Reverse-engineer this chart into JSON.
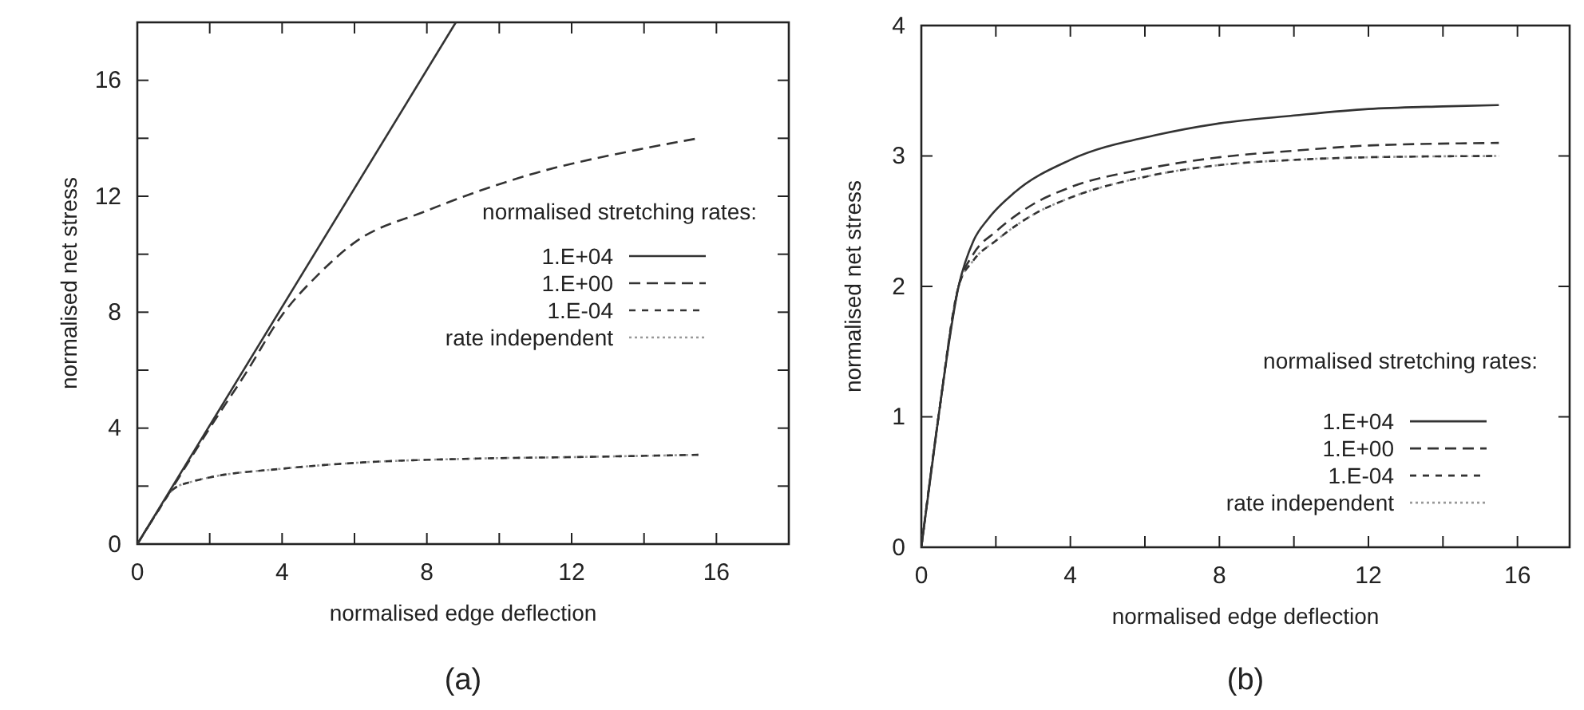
{
  "chart_data": [
    {
      "type": "line",
      "title": "(a)",
      "xlabel": "normalised edge deflection",
      "ylabel": "normalised net stress",
      "legend_title": "normalised stretching rates:",
      "legend": "right",
      "xlim": [
        0,
        18
      ],
      "ylim": [
        0,
        18
      ],
      "xticks": [
        0,
        {
          "value": 2,
          "label": null
        },
        4,
        {
          "value": 6,
          "label": null
        },
        8,
        {
          "value": 10,
          "label": null
        },
        12,
        {
          "value": 14,
          "label": null
        },
        16
      ],
      "yticks": [
        0,
        {
          "value": 2,
          "label": null
        },
        4,
        {
          "value": 6,
          "label": null
        },
        8,
        {
          "value": 10,
          "label": null
        },
        12,
        {
          "value": 14,
          "label": null
        },
        16
      ],
      "series": [
        {
          "name": "1.E+04",
          "color": "#333333",
          "line_style": "solid",
          "x": [
            0,
            8.8
          ],
          "values": [
            0,
            18
          ]
        },
        {
          "name": "1.E+00",
          "color": "#333333",
          "line_style": "dashed",
          "x": [
            0,
            1,
            2,
            3,
            4,
            5,
            6,
            8,
            11,
            13.8,
            15.5
          ],
          "values": [
            0,
            2,
            4,
            5.9,
            7.9,
            9.3,
            10.4,
            11.5,
            12.8,
            13.6,
            14
          ]
        },
        {
          "name": "1.E-04",
          "color": "#333333",
          "line_style": "dashed",
          "x": [
            0,
            0.5,
            1,
            1.5,
            2,
            4,
            6,
            9.4,
            12,
            15.5
          ],
          "values": [
            0,
            1,
            1.9,
            2.15,
            2.3,
            2.6,
            2.8,
            2.95,
            3.0,
            3.08
          ]
        },
        {
          "name": "rate independent",
          "color": "#999999",
          "line_style": "dotted",
          "x": [
            0,
            0.5,
            1,
            1.5,
            2,
            4,
            6,
            9.4,
            12,
            15.5
          ],
          "values": [
            0,
            1,
            1.9,
            2.15,
            2.3,
            2.6,
            2.8,
            2.95,
            3.0,
            3.08
          ]
        }
      ]
    },
    {
      "type": "line",
      "title": "(b)",
      "xlabel": "normalised edge deflection",
      "ylabel": "normalised net stress",
      "legend_title": "normalised stretching rates:",
      "legend": "bottom right",
      "xlim": [
        0,
        17.4
      ],
      "ylim": [
        0,
        4
      ],
      "xticks": [
        0,
        {
          "value": 2,
          "label": null
        },
        4,
        {
          "value": 6,
          "label": null
        },
        8,
        {
          "value": 10,
          "label": null
        },
        12,
        {
          "value": 14,
          "label": null
        },
        16
      ],
      "yticks": [
        0,
        1,
        2,
        3,
        4
      ],
      "series": [
        {
          "name": "1.E+04",
          "color": "#333333",
          "line_style": "solid",
          "x": [
            0,
            0.46,
            1,
            1.4,
            1.8,
            2.5,
            4,
            6.3,
            8,
            10,
            12,
            14,
            15.5
          ],
          "values": [
            0,
            1,
            2,
            2.35,
            2.52,
            2.72,
            2.97,
            3.16,
            3.25,
            3.31,
            3.36,
            3.38,
            3.39
          ]
        },
        {
          "name": "1.E+00",
          "color": "#333333",
          "line_style": "dashed",
          "x": [
            0,
            0.46,
            1,
            1.4,
            2,
            3,
            4,
            6,
            8,
            10,
            12,
            15.5
          ],
          "values": [
            0,
            1,
            2,
            2.25,
            2.42,
            2.63,
            2.76,
            2.9,
            2.99,
            3.04,
            3.08,
            3.1
          ]
        },
        {
          "name": "1.E-04",
          "color": "#333333",
          "line_style": "dashed",
          "x": [
            0,
            0.46,
            1,
            1.4,
            2,
            3,
            4,
            6,
            8,
            10,
            12,
            15.5
          ],
          "values": [
            0,
            1,
            2,
            2.2,
            2.35,
            2.55,
            2.68,
            2.84,
            2.93,
            2.97,
            2.99,
            3.0
          ]
        },
        {
          "name": "rate independent",
          "color": "#999999",
          "line_style": "dotted",
          "x": [
            0,
            0.46,
            1,
            1.4,
            2,
            3,
            4,
            6,
            8,
            10,
            12,
            15.5
          ],
          "values": [
            0,
            1,
            2,
            2.2,
            2.35,
            2.55,
            2.68,
            2.84,
            2.93,
            2.97,
            2.99,
            3.0
          ]
        }
      ]
    }
  ]
}
